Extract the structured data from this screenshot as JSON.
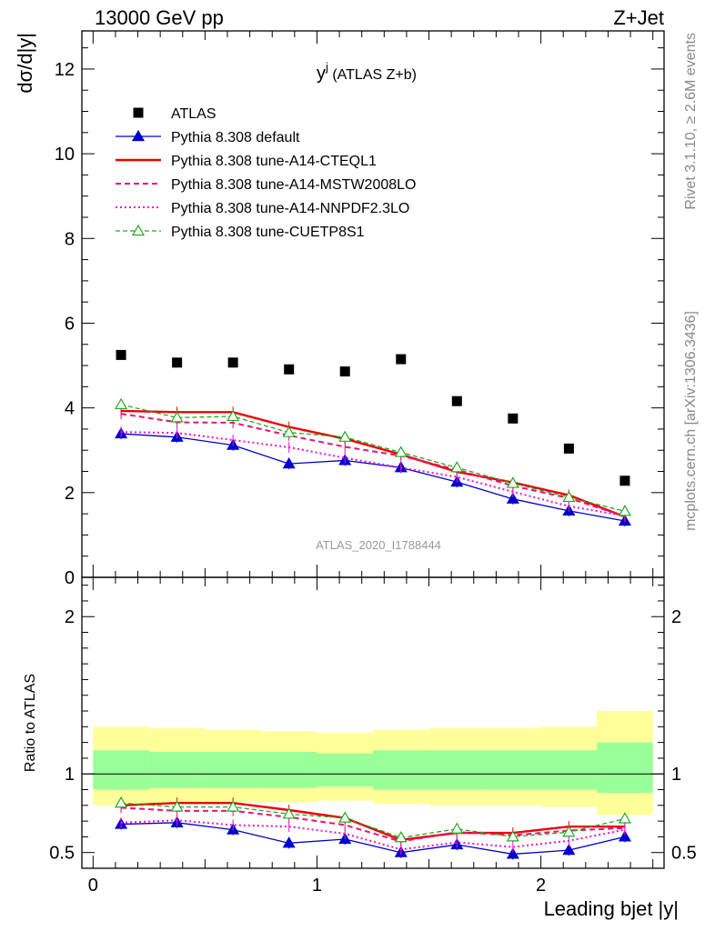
{
  "header": {
    "left": "13000 GeV pp",
    "right": "Z+Jet"
  },
  "plot_title_main": "y",
  "plot_title_sup": "j",
  "plot_title_rest": " (ATLAS Z+b)",
  "side_text": {
    "rivet": "Rivet 3.1.10, ≥ 2.6M events",
    "mcplots": "mcplots.cern.ch [arXiv:1306.3436]"
  },
  "watermark": "ATLAS_2020_I1788444",
  "colors": {
    "atlas": "#000000",
    "default": "#0000cc",
    "cteql1": "#ee0000",
    "mstw": "#ee1177",
    "nnpdf": "#ee11cc",
    "cuetp8s1": "#22aa22",
    "band_outer": "#ffff99",
    "band_inner": "#99ff99"
  },
  "chart_data": [
    {
      "type": "line",
      "panel": "main",
      "title": "y^j (ATLAS Z+b)",
      "ylabel": "dσ/d|y|",
      "xlim": [
        -0.05,
        2.55
      ],
      "ylim": [
        0,
        12.9
      ],
      "yticks": [
        "0",
        "2",
        "4",
        "6",
        "8",
        "10",
        "12"
      ],
      "legend_position": "top-left",
      "x": [
        0.125,
        0.375,
        0.625,
        0.875,
        1.125,
        1.375,
        1.625,
        1.875,
        2.125,
        2.375
      ],
      "series": [
        {
          "name": "ATLAS",
          "key": "atlas",
          "style": "marker",
          "values": [
            5.25,
            5.07,
            5.07,
            4.91,
            4.86,
            5.15,
            4.16,
            3.75,
            3.04,
            2.28
          ]
        },
        {
          "name": "Pythia 8.308 default",
          "key": "default",
          "style": "solid-triangle",
          "values": [
            3.39,
            3.31,
            3.12,
            2.68,
            2.76,
            2.59,
            2.25,
            1.85,
            1.57,
            1.33
          ]
        },
        {
          "name": "Pythia 8.308 tune-A14-CTEQL1",
          "key": "cteql1",
          "style": "solid-thick",
          "values": [
            3.93,
            3.9,
            3.9,
            3.55,
            3.27,
            2.9,
            2.49,
            2.24,
            1.94,
            1.43
          ]
        },
        {
          "name": "Pythia 8.308 tune-A14-MSTW2008LO",
          "key": "mstw",
          "style": "dashed",
          "values": [
            3.86,
            3.66,
            3.65,
            3.35,
            3.08,
            2.87,
            2.54,
            2.16,
            1.87,
            1.44
          ]
        },
        {
          "name": "Pythia 8.308 tune-A14-NNPDF2.3LO",
          "key": "nnpdf",
          "style": "dotted",
          "values": [
            3.43,
            3.41,
            3.24,
            3.07,
            2.82,
            2.59,
            2.37,
            2.02,
            1.68,
            1.45
          ]
        },
        {
          "name": "Pythia 8.308 tune-CUETP8S1",
          "key": "cuetp8s1",
          "style": "dashed-open-triangle",
          "values": [
            4.08,
            3.77,
            3.8,
            3.42,
            3.31,
            2.95,
            2.59,
            2.22,
            1.89,
            1.56
          ]
        }
      ]
    },
    {
      "type": "line",
      "panel": "ratio",
      "ylabel": "Ratio to ATLAS",
      "xlabel": "Leading bjet |y|",
      "xlim": [
        -0.05,
        2.55
      ],
      "ylim": [
        0.4,
        2.25
      ],
      "xticks": [
        "0",
        "1",
        "2"
      ],
      "yticks": [
        "0.5",
        "1",
        "2"
      ],
      "x": [
        0.125,
        0.375,
        0.625,
        0.875,
        1.125,
        1.375,
        1.625,
        1.875,
        2.125,
        2.375
      ],
      "band_edges": [
        0,
        0.25,
        0.5,
        0.75,
        1.0,
        1.25,
        1.5,
        1.75,
        2.0,
        2.25,
        2.5
      ],
      "band_outer": [
        [
          0.8,
          1.3
        ],
        [
          0.81,
          1.29
        ],
        [
          0.82,
          1.28
        ],
        [
          0.82,
          1.27
        ],
        [
          0.83,
          1.26
        ],
        [
          0.81,
          1.28
        ],
        [
          0.8,
          1.29
        ],
        [
          0.8,
          1.29
        ],
        [
          0.79,
          1.3
        ],
        [
          0.74,
          1.4
        ]
      ],
      "band_inner": [
        [
          0.9,
          1.15
        ],
        [
          0.91,
          1.14
        ],
        [
          0.91,
          1.14
        ],
        [
          0.91,
          1.14
        ],
        [
          0.92,
          1.13
        ],
        [
          0.9,
          1.15
        ],
        [
          0.9,
          1.15
        ],
        [
          0.9,
          1.15
        ],
        [
          0.9,
          1.15
        ],
        [
          0.88,
          1.2
        ]
      ],
      "series": [
        {
          "name": "Pythia 8.308 default",
          "key": "default",
          "style": "solid-triangle",
          "values": [
            0.68,
            0.69,
            0.645,
            0.56,
            0.585,
            0.5,
            0.55,
            0.49,
            0.515,
            0.6
          ]
        },
        {
          "name": "Pythia 8.308 tune-A14-CTEQL1",
          "key": "cteql1",
          "style": "solid-thick",
          "values": [
            0.8,
            0.815,
            0.815,
            0.77,
            0.72,
            0.58,
            0.625,
            0.625,
            0.665,
            0.665
          ]
        },
        {
          "name": "Pythia 8.308 tune-A14-MSTW2008LO",
          "key": "mstw",
          "style": "dashed",
          "values": [
            0.785,
            0.765,
            0.765,
            0.725,
            0.675,
            0.57,
            0.63,
            0.61,
            0.64,
            0.655
          ]
        },
        {
          "name": "Pythia 8.308 tune-A14-NNPDF2.3LO",
          "key": "nnpdf",
          "style": "dotted",
          "values": [
            0.69,
            0.705,
            0.675,
            0.665,
            0.62,
            0.52,
            0.565,
            0.535,
            0.575,
            0.645
          ]
        },
        {
          "name": "Pythia 8.308 tune-CUETP8S1",
          "key": "cuetp8s1",
          "style": "dashed-open-triangle",
          "values": [
            0.815,
            0.79,
            0.79,
            0.745,
            0.72,
            0.595,
            0.65,
            0.6,
            0.63,
            0.715
          ]
        }
      ]
    }
  ]
}
